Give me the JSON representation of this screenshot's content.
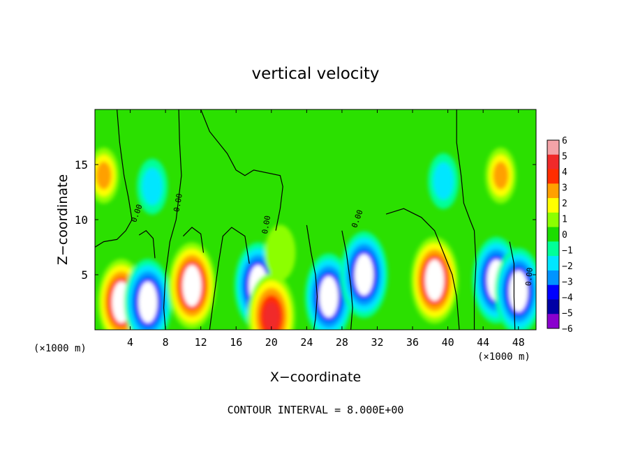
{
  "chart_data": {
    "type": "heatmap",
    "title": "vertical velocity",
    "xlabel": "X−coordinate",
    "ylabel": "Z−coordinate",
    "x_unit_left": "(×1000 m)",
    "x_unit_right": "(×1000 m)",
    "xlim": [
      0,
      50
    ],
    "ylim": [
      0,
      20
    ],
    "x_ticks": [
      4,
      8,
      12,
      16,
      20,
      24,
      28,
      32,
      36,
      40,
      44,
      48
    ],
    "y_ticks": [
      5,
      10,
      15
    ],
    "colorbar": {
      "ticks": [
        6,
        5,
        4,
        3,
        2,
        1,
        0,
        -1,
        -2,
        -3,
        -4,
        -5,
        -6
      ],
      "tick_labels": [
        "6",
        "5",
        "4",
        "3",
        "2",
        "1",
        "0",
        "−1",
        "−2",
        "−3",
        "−4",
        "−5",
        "−6"
      ],
      "colors": [
        "#f4a3a8",
        "#f02a2a",
        "#ff2d00",
        "#ffa000",
        "#ffff00",
        "#8cff00",
        "#1cdd00",
        "#00ff99",
        "#00e6ff",
        "#0094ff",
        "#0000ff",
        "#0000a5",
        "#8a00ce"
      ],
      "saturated_high": "#ffffff"
    },
    "contour_interval": "CONTOUR INTERVAL = 8.000E+00",
    "contour_labels": [
      "0.00",
      "0.00",
      "0.00",
      "0.00",
      "0.00"
    ],
    "cells": [
      {
        "x": 3,
        "z": 2.5,
        "w": 6.0
      },
      {
        "x": 6,
        "z": 2.5,
        "w": -6.0
      },
      {
        "x": 11,
        "z": 4.0,
        "w": 6.0
      },
      {
        "x": 18.5,
        "z": 4.0,
        "w": -6.0
      },
      {
        "x": 20,
        "z": 1.2,
        "w": 5.0
      },
      {
        "x": 21,
        "z": 7.0,
        "w": 1.0
      },
      {
        "x": 26.5,
        "z": 3.0,
        "w": -6.0
      },
      {
        "x": 30.5,
        "z": 5.0,
        "w": -6.0
      },
      {
        "x": 38.5,
        "z": 4.5,
        "w": 6.0
      },
      {
        "x": 45.5,
        "z": 4.5,
        "w": -6.0
      },
      {
        "x": 48,
        "z": 3.5,
        "w": -6.0
      },
      {
        "x": 1,
        "z": 14,
        "w": 3.0
      },
      {
        "x": 46,
        "z": 14,
        "w": 3.0
      },
      {
        "x": 6.5,
        "z": 13,
        "w": -2.0
      },
      {
        "x": 39.5,
        "z": 13.5,
        "w": -2.0
      }
    ]
  }
}
